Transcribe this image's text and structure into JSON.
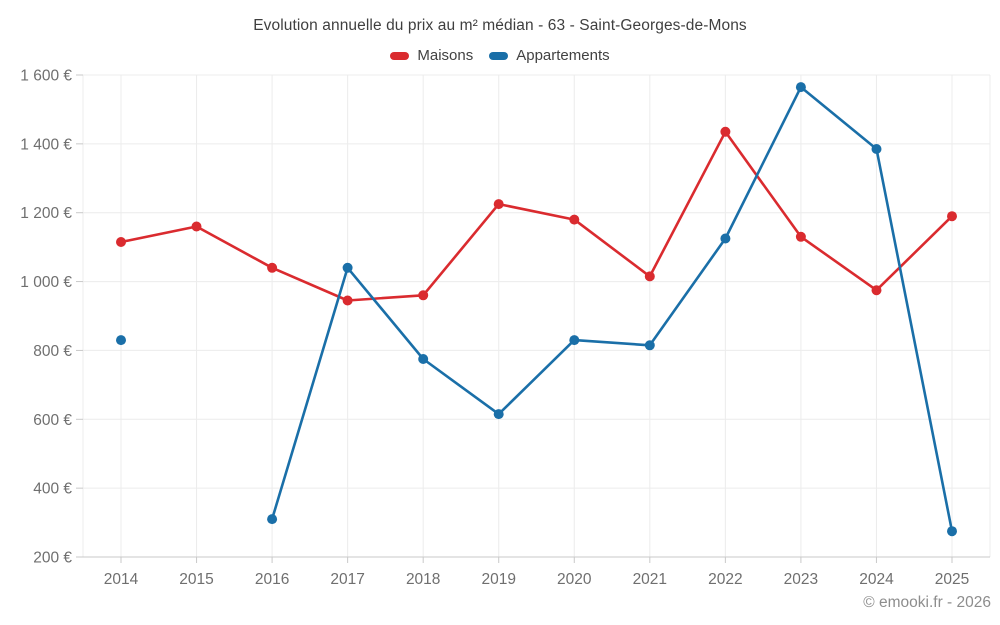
{
  "chart_data": {
    "type": "line",
    "title": "Evolution annuelle du prix au m² médian - 63 - Saint-Georges-de-Mons",
    "x": [
      2014,
      2015,
      2016,
      2017,
      2018,
      2019,
      2020,
      2021,
      2022,
      2023,
      2024,
      2025
    ],
    "series": [
      {
        "name": "Maisons",
        "color": "#da2b2f",
        "values": [
          1115,
          1160,
          1040,
          945,
          960,
          1225,
          1180,
          1015,
          1435,
          1130,
          975,
          1190
        ]
      },
      {
        "name": "Appartements",
        "color": "#1a6fa8",
        "values": [
          830,
          null,
          310,
          1040,
          775,
          615,
          830,
          815,
          1125,
          1565,
          1385,
          275
        ]
      }
    ],
    "ylabel": "",
    "xlabel": "",
    "ylim": [
      200,
      1600
    ],
    "ytick_step": 200,
    "y_tick_suffix": " €",
    "grid": true,
    "legend_position": "top-center"
  },
  "watermark": "© emooki.fr - 2026",
  "colors": {
    "maisons": "#da2b2f",
    "appartements": "#1a6fa8",
    "grid": "#ececec",
    "axis_line": "#c9c9c9",
    "tick": "#c9c9c9",
    "axis_text": "#6f6f6f",
    "title_text": "#3f3f3f",
    "legend_text": "#424242",
    "watermark_text": "#8d8d8d",
    "background": "#ffffff"
  }
}
